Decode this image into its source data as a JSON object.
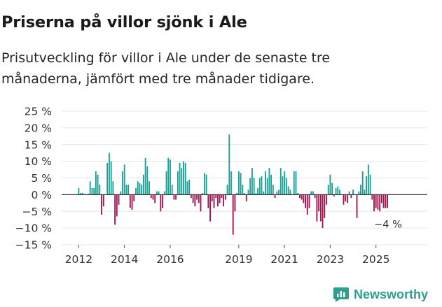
{
  "title": "Priserna på villor sjönk i Ale",
  "subtitle_lines": [
    "Prisutveckling för villor i Ale under de senaste tre",
    "månaderna, jämfört med tre månader tidigare."
  ],
  "brand": {
    "name": "Newsworthy",
    "color": "#2e9f8f"
  },
  "colors": {
    "positive": "#17a196",
    "negative": "#a3124f",
    "zero_line": "#333333",
    "grid": "#e6e6e6"
  },
  "chart_data": {
    "type": "bar",
    "title": "Priserna på villor sjönk i Ale",
    "xlabel": "",
    "ylabel": "",
    "ylim": [
      -15,
      25
    ],
    "yticks": [
      25,
      20,
      15,
      10,
      5,
      0,
      -5,
      -10,
      -15
    ],
    "ytick_labels": [
      "25 %",
      "20 %",
      "15 %",
      "10 %",
      "5 %",
      "0 %",
      "−5 %",
      "−10 %",
      "−15 %"
    ],
    "xticks": [
      {
        "label": "2012",
        "index": 0
      },
      {
        "label": "2014",
        "index": 24
      },
      {
        "label": "2016",
        "index": 48
      },
      {
        "label": "2019",
        "index": 84
      },
      {
        "label": "2021",
        "index": 108
      },
      {
        "label": "2023",
        "index": 132
      },
      {
        "label": "2025",
        "index": 156
      }
    ],
    "start": "2012-01",
    "frequency": "monthly",
    "annotation": {
      "label": "−4 %",
      "value": -4
    },
    "values": [
      2,
      0.5,
      0.5,
      0.2,
      0,
      0.3,
      4,
      2,
      2,
      7,
      6,
      3,
      -6,
      -3.5,
      0,
      9.5,
      12.5,
      10,
      4,
      -9,
      -6.5,
      -3,
      1,
      7,
      9,
      3,
      3,
      -4,
      -4.5,
      -2,
      2,
      4,
      3.5,
      3,
      6,
      11,
      8.5,
      4,
      -1,
      -1.5,
      -2.5,
      1,
      1,
      -5,
      -4,
      1,
      7,
      11,
      10.5,
      3,
      -1.5,
      -1.5,
      7,
      9.5,
      8,
      10,
      9.5,
      4,
      4.5,
      -1,
      -2.5,
      -3.5,
      -1.5,
      -2.5,
      -5,
      0.5,
      6.5,
      6,
      -4,
      -8,
      -2,
      -4,
      -1,
      -3.5,
      -2.5,
      -1,
      -3.5,
      -1.5,
      3,
      18,
      7,
      -12,
      -5,
      0.5,
      7,
      6.5,
      3,
      0.5,
      -2,
      1.5,
      5,
      8,
      5,
      0.5,
      2,
      5,
      5.5,
      1,
      7,
      5,
      8,
      6,
      3,
      -1,
      1,
      1.5,
      8,
      5.5,
      7,
      5,
      2.5,
      1.5,
      0,
      7,
      7,
      0.5,
      -1,
      -1.5,
      -2.5,
      -4,
      -6,
      -4,
      1,
      1,
      -1,
      -8,
      -5,
      -8,
      -10,
      -7,
      -3,
      3,
      6,
      3.5,
      -0.5,
      2,
      2.5,
      1.5,
      0,
      -3,
      -2,
      -2.5,
      1,
      -1,
      1.5,
      0,
      -7,
      1,
      3,
      7,
      1.5,
      5.5,
      9,
      6,
      -1.5,
      -5,
      -4,
      -4.5,
      -5,
      -2.5,
      -4,
      -4,
      -4
    ]
  }
}
